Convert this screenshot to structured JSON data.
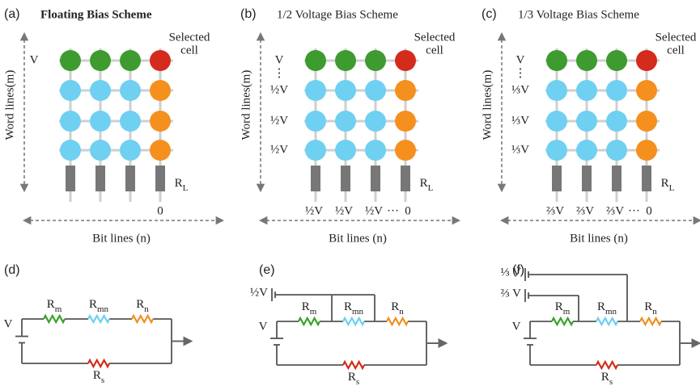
{
  "top_panels": [
    {
      "label": "(a)",
      "title": "Floating Bias Scheme",
      "selected_cell": [
        "Selected",
        "cell"
      ],
      "row_labels": [
        "V"
      ],
      "column_labels": [
        "0"
      ],
      "load_resistor": {
        "symbol": "R",
        "subscript": "L"
      },
      "word_lines": "Word lines(m)",
      "bit_lines": "Bit lines (n)"
    },
    {
      "label": "(b)",
      "title": "1/2 Voltage Bias Scheme",
      "selected_cell": [
        "Selected",
        "cell"
      ],
      "row_labels": [
        "V",
        "⋮",
        "½V",
        "½V",
        "½V"
      ],
      "column_labels": [
        "½V",
        "½V",
        "½V",
        "···",
        "0"
      ],
      "load_resistor": {
        "symbol": "R",
        "subscript": "L"
      },
      "word_lines": "Word lines(m)",
      "bit_lines": "Bit lines (n)"
    },
    {
      "label": "(c)",
      "title": "1/3 Voltage Bias Scheme",
      "selected_cell": [
        "Selected",
        "cell"
      ],
      "row_labels": [
        "V",
        "⋮",
        "⅓V",
        "⅓V",
        "⅓V"
      ],
      "column_labels": [
        "⅔V",
        "⅔V",
        "⅔V",
        "···",
        "0"
      ],
      "load_resistor": {
        "symbol": "R",
        "subscript": "L"
      },
      "word_lines": "Word lines(m)",
      "bit_lines": "Bit lines (n)"
    }
  ],
  "bottom_panels": [
    {
      "label": "(d)",
      "sources": [
        "V"
      ],
      "resistors": [
        {
          "symbol": "R",
          "subscript": "m"
        },
        {
          "symbol": "R",
          "subscript": "mn"
        },
        {
          "symbol": "R",
          "subscript": "n"
        },
        {
          "symbol": "R",
          "subscript": "s"
        }
      ]
    },
    {
      "label": "(e)",
      "sources": [
        "½V",
        "V"
      ],
      "resistors": [
        {
          "symbol": "R",
          "subscript": "m"
        },
        {
          "symbol": "R",
          "subscript": "mn"
        },
        {
          "symbol": "R",
          "subscript": "n"
        },
        {
          "symbol": "R",
          "subscript": "s"
        }
      ]
    },
    {
      "label": "(f)",
      "sources": [
        "⅓ V",
        "⅔ V",
        "V"
      ],
      "resistors": [
        {
          "symbol": "R",
          "subscript": "m"
        },
        {
          "symbol": "R",
          "subscript": "mn"
        },
        {
          "symbol": "R",
          "subscript": "n"
        },
        {
          "symbol": "R",
          "subscript": "s"
        }
      ]
    }
  ]
}
